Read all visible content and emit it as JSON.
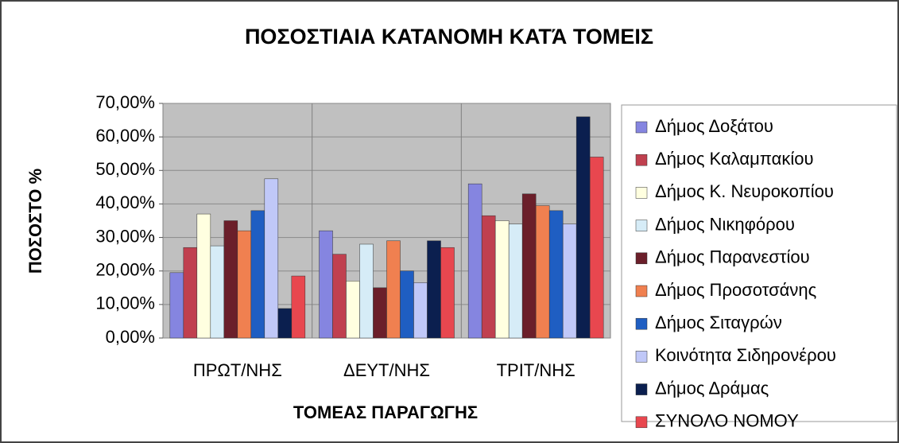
{
  "chart_data": {
    "type": "bar",
    "title": "ΠΟΣΟΣΤΙΑΙΑ ΚΑΤΑΝΟΜΗ ΚΑΤΆ ΤΟΜΕΙΣ",
    "x_label": "ΤΟΜΕΑΣ ΠΑΡΑΓΩΓΗΣ",
    "y_label": "ΠΟΣΟΣΤΟ %",
    "categories": [
      "ΠΡΩΤ/ΝΗΣ",
      "ΔΕΥΤ/ΝΗΣ",
      "ΤΡΙΤ/ΝΗΣ"
    ],
    "series": [
      {
        "name": "Δήμος Δοξάτου",
        "color": "#8585e0",
        "values": [
          19.5,
          32,
          46
        ]
      },
      {
        "name": "Δήμος Καλαμπακίου",
        "color": "#c0404f",
        "values": [
          27,
          25,
          36.5
        ]
      },
      {
        "name": "Δήμος Κ. Νευροκοπίου",
        "color": "#ffffe0",
        "values": [
          37,
          17,
          35
        ]
      },
      {
        "name": "Δήμος Νικηφόρου",
        "color": "#d6ecf7",
        "values": [
          27.5,
          28,
          34
        ]
      },
      {
        "name": "Δήμος Παρανεστίου",
        "color": "#6b1f2a",
        "values": [
          35,
          15,
          43
        ]
      },
      {
        "name": "Δήμος Προσοτσάνης",
        "color": "#f08050",
        "values": [
          32,
          29,
          39.5
        ]
      },
      {
        "name": "Δήμος Σιταγρών",
        "color": "#1f5ec2",
        "values": [
          38,
          20,
          38
        ]
      },
      {
        "name": "Κοινότητα Σιδηρονέρου",
        "color": "#c0c8f8",
        "values": [
          47.5,
          16.5,
          34
        ]
      },
      {
        "name": "Δήμος Δράμας",
        "color": "#0b1f4f",
        "values": [
          8.8,
          29,
          66
        ]
      },
      {
        "name": "ΣΥΝΟΛΟ ΝΟΜΟΥ",
        "color": "#e8474f",
        "values": [
          18.5,
          27,
          54
        ]
      }
    ],
    "ylim": [
      0,
      70
    ],
    "yticks": [
      {
        "value": 0,
        "label": "0,00%"
      },
      {
        "value": 10,
        "label": "10,00%"
      },
      {
        "value": 20,
        "label": "20,00%"
      },
      {
        "value": 30,
        "label": "30,00%"
      },
      {
        "value": 40,
        "label": "40,00%"
      },
      {
        "value": 50,
        "label": "50,00%"
      },
      {
        "value": 60,
        "label": "60,00%"
      },
      {
        "value": 70,
        "label": "70,00%"
      }
    ],
    "grid": true,
    "legend": "right"
  }
}
